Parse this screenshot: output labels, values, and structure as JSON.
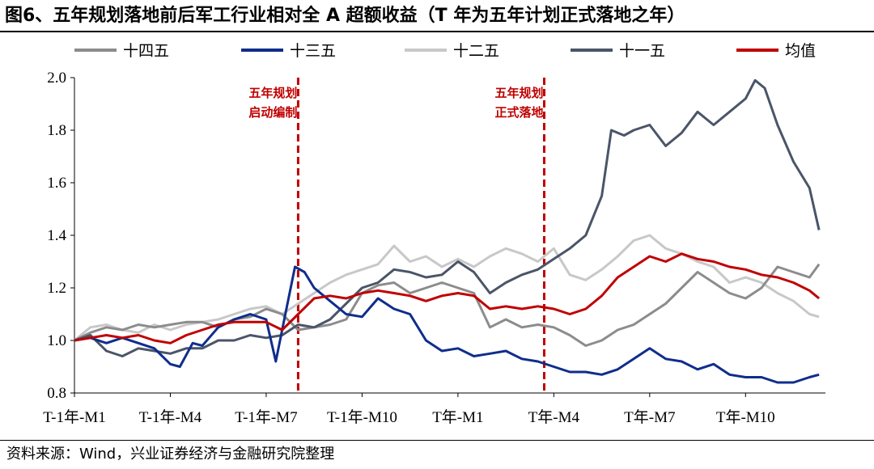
{
  "title": "图6、五年规划落地前后军工行业相对全 A 超额收益（T 年为五年计划正式落地之年）",
  "source": "资料来源：Wind，兴业证券经济与金融研究院整理",
  "chart_data": {
    "type": "line",
    "title": "图6、五年规划落地前后军工行业相对全 A 超额收益（T 年为五年计划正式落地之年）",
    "xlabel": "",
    "ylabel": "",
    "ylim": [
      0.8,
      2.0
    ],
    "yticks": [
      "0.8",
      "1.0",
      "1.2",
      "1.4",
      "1.6",
      "1.8",
      "2.0"
    ],
    "xticks": [
      "T-1年-M1",
      "T-1年-M4",
      "T-1年-M7",
      "T-1年-M10",
      "T年-M1",
      "T年-M4",
      "T年-M7",
      "T年-M10"
    ],
    "xtick_months": [
      1,
      4,
      7,
      10,
      13,
      16,
      19,
      22
    ],
    "xlim_months": [
      1,
      24.5
    ],
    "grid": false,
    "legend_position": "top",
    "annotations": [
      {
        "text_lines": [
          "五年规划",
          "启动编制"
        ],
        "month": 8.0
      },
      {
        "text_lines": [
          "五年规划",
          "正式落地"
        ],
        "month": 15.7
      }
    ],
    "series": [
      {
        "name": "十四五",
        "color": "#8c8c8c",
        "points": [
          [
            1,
            1.0
          ],
          [
            1.5,
            1.03
          ],
          [
            2,
            1.05
          ],
          [
            2.5,
            1.04
          ],
          [
            3,
            1.06
          ],
          [
            3.5,
            1.05
          ],
          [
            4,
            1.06
          ],
          [
            4.5,
            1.07
          ],
          [
            5,
            1.07
          ],
          [
            5.5,
            1.05
          ],
          [
            6,
            1.08
          ],
          [
            6.5,
            1.09
          ],
          [
            7,
            1.12
          ],
          [
            7.5,
            1.1
          ],
          [
            8,
            1.04
          ],
          [
            8.5,
            1.05
          ],
          [
            9,
            1.06
          ],
          [
            9.5,
            1.08
          ],
          [
            10,
            1.18
          ],
          [
            10.5,
            1.21
          ],
          [
            11,
            1.22
          ],
          [
            11.5,
            1.18
          ],
          [
            12,
            1.2
          ],
          [
            12.5,
            1.22
          ],
          [
            13,
            1.2
          ],
          [
            13.5,
            1.18
          ],
          [
            14,
            1.05
          ],
          [
            14.5,
            1.08
          ],
          [
            15,
            1.05
          ],
          [
            15.5,
            1.06
          ],
          [
            16,
            1.05
          ],
          [
            16.5,
            1.02
          ],
          [
            17,
            0.98
          ],
          [
            17.5,
            1.0
          ],
          [
            18,
            1.04
          ],
          [
            18.5,
            1.06
          ],
          [
            19,
            1.1
          ],
          [
            19.5,
            1.14
          ],
          [
            20,
            1.2
          ],
          [
            20.5,
            1.26
          ],
          [
            21,
            1.22
          ],
          [
            21.5,
            1.18
          ],
          [
            22,
            1.16
          ],
          [
            22.5,
            1.2
          ],
          [
            23,
            1.28
          ],
          [
            23.5,
            1.26
          ],
          [
            24,
            1.24
          ],
          [
            24.3,
            1.29
          ]
        ]
      },
      {
        "name": "十三五",
        "color": "#0f2d8c",
        "points": [
          [
            1,
            1.0
          ],
          [
            1.5,
            1.01
          ],
          [
            2,
            0.99
          ],
          [
            2.5,
            1.01
          ],
          [
            3,
            0.99
          ],
          [
            3.5,
            0.97
          ],
          [
            4,
            0.91
          ],
          [
            4.3,
            0.9
          ],
          [
            4.7,
            0.99
          ],
          [
            5,
            0.98
          ],
          [
            5.5,
            1.05
          ],
          [
            6,
            1.08
          ],
          [
            6.5,
            1.1
          ],
          [
            7,
            1.08
          ],
          [
            7.3,
            0.92
          ],
          [
            7.6,
            1.1
          ],
          [
            7.9,
            1.28
          ],
          [
            8.2,
            1.26
          ],
          [
            8.5,
            1.2
          ],
          [
            9,
            1.15
          ],
          [
            9.5,
            1.1
          ],
          [
            10,
            1.09
          ],
          [
            10.5,
            1.16
          ],
          [
            11,
            1.12
          ],
          [
            11.5,
            1.1
          ],
          [
            12,
            1.0
          ],
          [
            12.5,
            0.96
          ],
          [
            13,
            0.97
          ],
          [
            13.5,
            0.94
          ],
          [
            14,
            0.95
          ],
          [
            14.5,
            0.96
          ],
          [
            15,
            0.93
          ],
          [
            15.5,
            0.92
          ],
          [
            16,
            0.9
          ],
          [
            16.5,
            0.88
          ],
          [
            17,
            0.88
          ],
          [
            17.5,
            0.87
          ],
          [
            18,
            0.89
          ],
          [
            18.5,
            0.93
          ],
          [
            19,
            0.97
          ],
          [
            19.5,
            0.93
          ],
          [
            20,
            0.92
          ],
          [
            20.5,
            0.89
          ],
          [
            21,
            0.91
          ],
          [
            21.5,
            0.87
          ],
          [
            22,
            0.86
          ],
          [
            22.5,
            0.86
          ],
          [
            23,
            0.84
          ],
          [
            23.5,
            0.84
          ],
          [
            24,
            0.86
          ],
          [
            24.3,
            0.87
          ]
        ]
      },
      {
        "name": "十二五",
        "color": "#c8c8c8",
        "points": [
          [
            1,
            1.0
          ],
          [
            1.5,
            1.05
          ],
          [
            2,
            1.06
          ],
          [
            2.5,
            1.04
          ],
          [
            3,
            1.03
          ],
          [
            3.5,
            1.06
          ],
          [
            4,
            1.04
          ],
          [
            4.5,
            1.06
          ],
          [
            5,
            1.07
          ],
          [
            5.5,
            1.08
          ],
          [
            6,
            1.1
          ],
          [
            6.5,
            1.12
          ],
          [
            7,
            1.13
          ],
          [
            7.5,
            1.1
          ],
          [
            8,
            1.14
          ],
          [
            8.5,
            1.18
          ],
          [
            9,
            1.22
          ],
          [
            9.5,
            1.25
          ],
          [
            10,
            1.27
          ],
          [
            10.5,
            1.29
          ],
          [
            11,
            1.36
          ],
          [
            11.5,
            1.3
          ],
          [
            12,
            1.32
          ],
          [
            12.5,
            1.28
          ],
          [
            13,
            1.31
          ],
          [
            13.5,
            1.28
          ],
          [
            14,
            1.32
          ],
          [
            14.5,
            1.35
          ],
          [
            15,
            1.33
          ],
          [
            15.5,
            1.3
          ],
          [
            16,
            1.35
          ],
          [
            16.5,
            1.25
          ],
          [
            17,
            1.23
          ],
          [
            17.5,
            1.27
          ],
          [
            18,
            1.32
          ],
          [
            18.5,
            1.38
          ],
          [
            19,
            1.4
          ],
          [
            19.5,
            1.35
          ],
          [
            20,
            1.33
          ],
          [
            20.5,
            1.3
          ],
          [
            21,
            1.28
          ],
          [
            21.5,
            1.22
          ],
          [
            22,
            1.24
          ],
          [
            22.5,
            1.22
          ],
          [
            23,
            1.18
          ],
          [
            23.5,
            1.15
          ],
          [
            24,
            1.1
          ],
          [
            24.3,
            1.09
          ]
        ]
      },
      {
        "name": "十一五",
        "color": "#4a5568",
        "points": [
          [
            1,
            1.0
          ],
          [
            1.5,
            1.02
          ],
          [
            2,
            0.96
          ],
          [
            2.5,
            0.94
          ],
          [
            3,
            0.97
          ],
          [
            3.5,
            0.96
          ],
          [
            4,
            0.95
          ],
          [
            4.5,
            0.97
          ],
          [
            5,
            0.97
          ],
          [
            5.5,
            1.0
          ],
          [
            6,
            1.0
          ],
          [
            6.5,
            1.02
          ],
          [
            7,
            1.01
          ],
          [
            7.5,
            1.02
          ],
          [
            8,
            1.06
          ],
          [
            8.5,
            1.05
          ],
          [
            9,
            1.08
          ],
          [
            9.5,
            1.14
          ],
          [
            10,
            1.2
          ],
          [
            10.5,
            1.22
          ],
          [
            11,
            1.27
          ],
          [
            11.5,
            1.26
          ],
          [
            12,
            1.24
          ],
          [
            12.5,
            1.25
          ],
          [
            13,
            1.3
          ],
          [
            13.5,
            1.26
          ],
          [
            14,
            1.18
          ],
          [
            14.5,
            1.22
          ],
          [
            15,
            1.25
          ],
          [
            15.5,
            1.27
          ],
          [
            16,
            1.31
          ],
          [
            16.5,
            1.35
          ],
          [
            17,
            1.4
          ],
          [
            17.5,
            1.55
          ],
          [
            17.8,
            1.8
          ],
          [
            18.2,
            1.78
          ],
          [
            18.5,
            1.8
          ],
          [
            19,
            1.82
          ],
          [
            19.5,
            1.74
          ],
          [
            20,
            1.79
          ],
          [
            20.5,
            1.87
          ],
          [
            21,
            1.82
          ],
          [
            21.5,
            1.87
          ],
          [
            22,
            1.92
          ],
          [
            22.3,
            1.99
          ],
          [
            22.6,
            1.96
          ],
          [
            23,
            1.82
          ],
          [
            23.5,
            1.68
          ],
          [
            24,
            1.58
          ],
          [
            24.3,
            1.42
          ]
        ]
      },
      {
        "name": "均值",
        "color": "#c00000",
        "points": [
          [
            1,
            1.0
          ],
          [
            1.5,
            1.01
          ],
          [
            2,
            1.02
          ],
          [
            2.5,
            1.01
          ],
          [
            3,
            1.02
          ],
          [
            3.5,
            1.0
          ],
          [
            4,
            0.99
          ],
          [
            4.5,
            1.02
          ],
          [
            5,
            1.04
          ],
          [
            5.5,
            1.06
          ],
          [
            6,
            1.07
          ],
          [
            6.5,
            1.07
          ],
          [
            7,
            1.07
          ],
          [
            7.5,
            1.04
          ],
          [
            8,
            1.1
          ],
          [
            8.5,
            1.16
          ],
          [
            9,
            1.17
          ],
          [
            9.5,
            1.16
          ],
          [
            10,
            1.18
          ],
          [
            10.5,
            1.19
          ],
          [
            11,
            1.18
          ],
          [
            11.5,
            1.17
          ],
          [
            12,
            1.15
          ],
          [
            12.5,
            1.17
          ],
          [
            13,
            1.18
          ],
          [
            13.5,
            1.17
          ],
          [
            14,
            1.12
          ],
          [
            14.5,
            1.13
          ],
          [
            15,
            1.12
          ],
          [
            15.5,
            1.13
          ],
          [
            16,
            1.12
          ],
          [
            16.5,
            1.1
          ],
          [
            17,
            1.12
          ],
          [
            17.5,
            1.17
          ],
          [
            18,
            1.24
          ],
          [
            18.5,
            1.28
          ],
          [
            19,
            1.32
          ],
          [
            19.5,
            1.3
          ],
          [
            20,
            1.33
          ],
          [
            20.5,
            1.31
          ],
          [
            21,
            1.3
          ],
          [
            21.5,
            1.28
          ],
          [
            22,
            1.27
          ],
          [
            22.5,
            1.25
          ],
          [
            23,
            1.24
          ],
          [
            23.5,
            1.22
          ],
          [
            24,
            1.19
          ],
          [
            24.3,
            1.16
          ]
        ]
      }
    ]
  }
}
